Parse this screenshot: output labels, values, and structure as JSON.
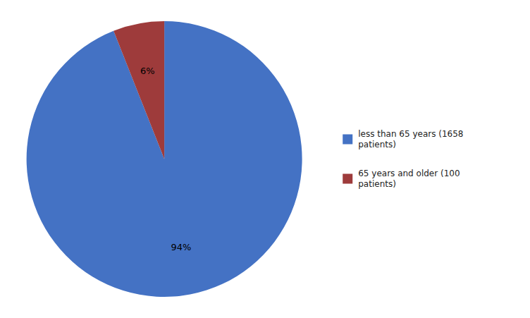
{
  "chart_data": {
    "type": "pie",
    "categories": [
      "less than 65 years (1658\npatients)",
      "65 years and older (100\npatients)"
    ],
    "values": [
      94,
      6
    ],
    "value_labels": [
      "94%",
      "6%"
    ],
    "data_labels": true,
    "colors": [
      "#4472C4",
      "#9E3B3B"
    ],
    "legend": "right"
  }
}
